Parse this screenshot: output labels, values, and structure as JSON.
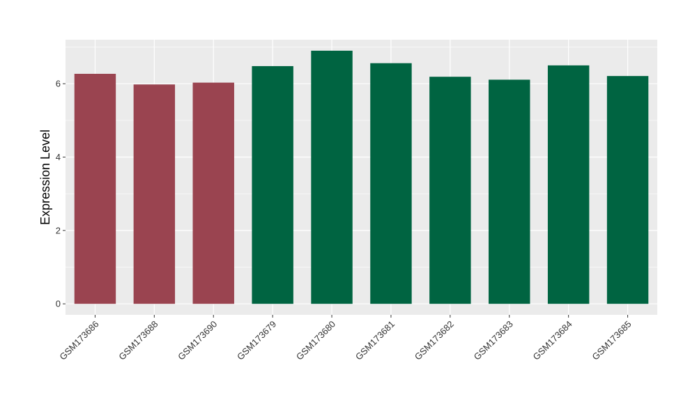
{
  "chart_data": {
    "type": "bar",
    "title": "",
    "xlabel": "",
    "ylabel": "Expression Level",
    "ylim": [
      -0.3,
      7.2
    ],
    "yticks": [
      0,
      2,
      4,
      6
    ],
    "ytick_labels": [
      "0",
      "2",
      "4",
      "6"
    ],
    "grid": true,
    "legend": "none",
    "categories": [
      "GSM173686",
      "GSM173688",
      "GSM173690",
      "GSM173679",
      "GSM173680",
      "GSM173681",
      "GSM173682",
      "GSM173683",
      "GSM173684",
      "GSM173685"
    ],
    "values": [
      6.27,
      5.98,
      6.03,
      6.48,
      6.9,
      6.56,
      6.19,
      6.11,
      6.5,
      6.21
    ],
    "group_index": [
      0,
      0,
      0,
      1,
      1,
      1,
      1,
      1,
      1,
      1
    ],
    "colors": [
      "#9A4450",
      "#006441"
    ],
    "panel_background": "#EBEBEB"
  }
}
